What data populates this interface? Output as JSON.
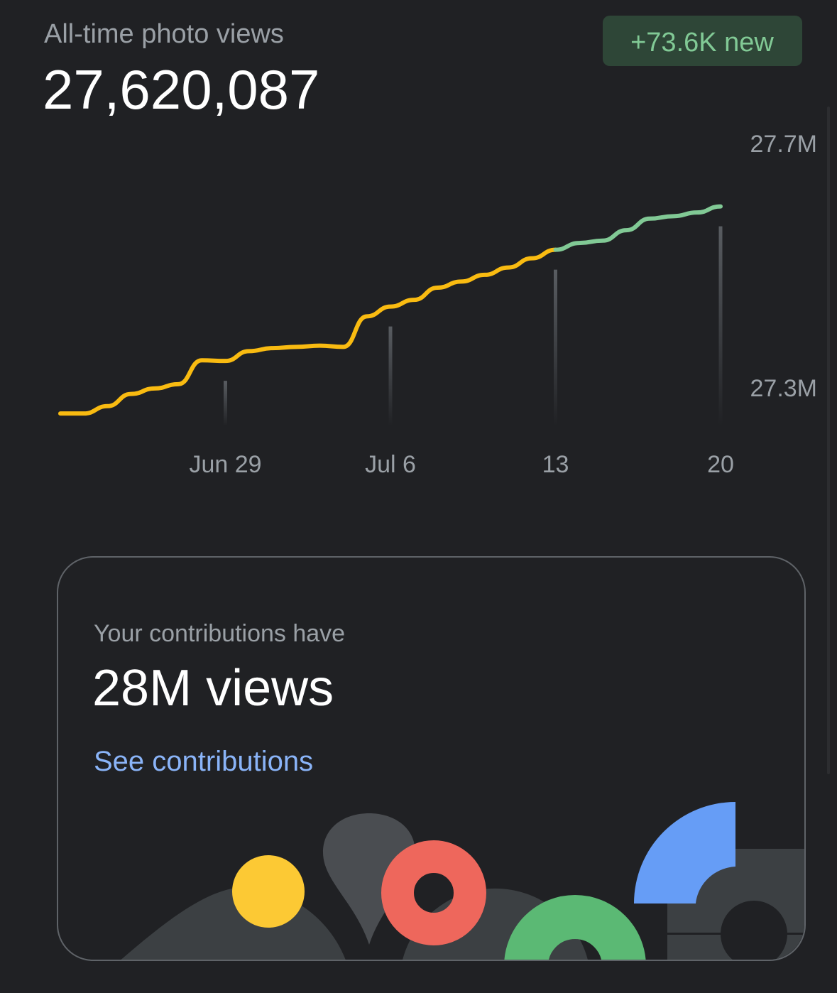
{
  "header": {
    "title": "All-time photo views",
    "total": "27,620,087",
    "badge": "+73.6K new"
  },
  "chart_data": {
    "type": "line",
    "categories": [
      null,
      null,
      null,
      null,
      null,
      null,
      null,
      "Jun 29",
      null,
      null,
      null,
      null,
      null,
      null,
      "Jul 6",
      null,
      null,
      null,
      null,
      null,
      null,
      "13",
      null,
      null,
      null,
      null,
      null,
      null,
      "20"
    ],
    "series": [
      {
        "color": "#f9bb11",
        "values": [
          27258000,
          27258000,
          27270000,
          27290000,
          27299000,
          27306000,
          27345000,
          27344000,
          27360000,
          27365000,
          27367000,
          27369000,
          27367000,
          27417000,
          27433000,
          27444000,
          27464000,
          27474000,
          27485000,
          27497000,
          27512000,
          27526000,
          27537000,
          27541000,
          27558000,
          27577000,
          27581000,
          27587000,
          27597000
        ]
      }
    ],
    "highlight": {
      "from": 21,
      "color": "#81c995"
    },
    "ylim": [
      27250000,
      27750000
    ],
    "yticks": [
      {
        "value": 27300000,
        "label": "27.3M"
      },
      {
        "value": 27700000,
        "label": "27.7M"
      }
    ]
  },
  "card": {
    "caption": "Your contributions have",
    "headline": "28M views",
    "link": "See contributions"
  }
}
